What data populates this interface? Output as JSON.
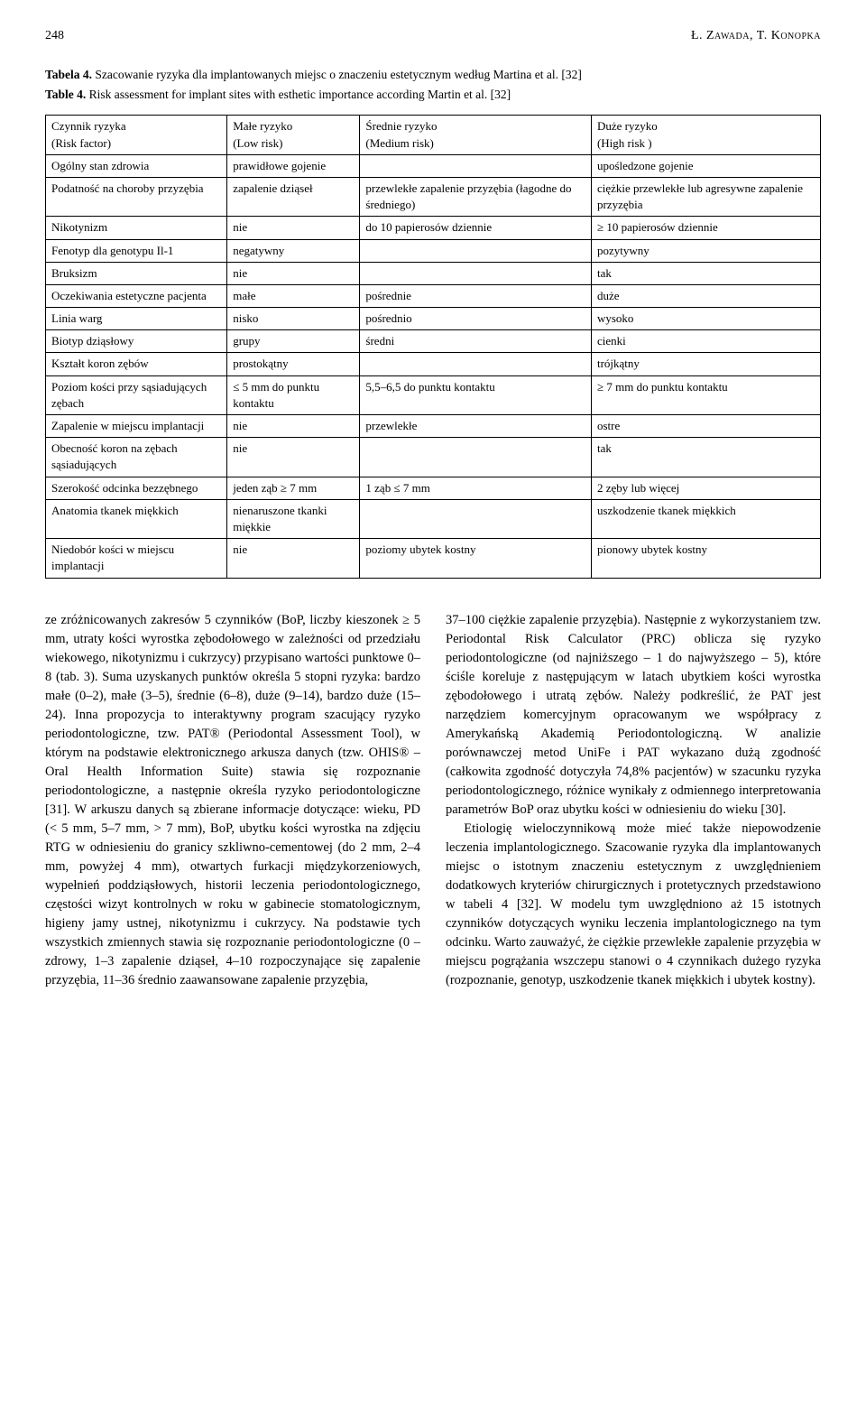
{
  "header": {
    "page_number": "248",
    "authors": "Ł. Zawada, T. Konopka"
  },
  "table": {
    "caption_label": "Tabela 4.",
    "caption_text": "Szacowanie ryzyka dla implantowanych miejsc o znaczeniu estetycznym według Martina et al. [32]",
    "subcaption_label": "Table 4.",
    "subcaption_text": "Risk assessment for implant sites with esthetic importance according Martin et al. [32]",
    "headers": {
      "c0_pl": "Czynnik ryzyka",
      "c0_en": "(Risk factor)",
      "c1_pl": "Małe ryzyko",
      "c1_en": "(Low risk)",
      "c2_pl": "Średnie ryzyko",
      "c2_en": "(Medium risk)",
      "c3_pl": "Duże ryzyko",
      "c3_en": "(High risk )"
    },
    "rows": [
      {
        "c0": "Ogólny stan zdrowia",
        "c1": "prawidłowe gojenie",
        "c2": "",
        "c3": "upośledzone gojenie"
      },
      {
        "c0": "Podatność na choroby przyzębia",
        "c1": "zapalenie dziąseł",
        "c2": "przewlekłe zapalenie przyzębia (łagodne do średniego)",
        "c3": "ciężkie przewlekłe lub agresywne zapalenie przyzębia"
      },
      {
        "c0": "Nikotynizm",
        "c1": "nie",
        "c2": "do 10 papierosów dziennie",
        "c3": "≥ 10 papierosów dziennie"
      },
      {
        "c0": "Fenotyp dla genotypu Il-1",
        "c1": "negatywny",
        "c2": "",
        "c3": "pozytywny"
      },
      {
        "c0": "Bruksizm",
        "c1": "nie",
        "c2": "",
        "c3": "tak"
      },
      {
        "c0": "Oczekiwania estetyczne pacjenta",
        "c1": "małe",
        "c2": "pośrednie",
        "c3": "duże"
      },
      {
        "c0": "Linia warg",
        "c1": "nisko",
        "c2": "pośrednio",
        "c3": "wysoko"
      },
      {
        "c0": "Biotyp dziąsłowy",
        "c1": "grupy",
        "c2": "średni",
        "c3": "cienki"
      },
      {
        "c0": "Kształt koron zębów",
        "c1": "prostokątny",
        "c2": "",
        "c3": "trójkątny"
      },
      {
        "c0": "Poziom kości przy sąsiadujących zębach",
        "c1": "≤ 5 mm do punktu kontaktu",
        "c2": "5,5–6,5 do punktu kontaktu",
        "c3": "≥ 7 mm do punktu kontaktu"
      },
      {
        "c0": "Zapalenie w miejscu implantacji",
        "c1": "nie",
        "c2": "przewlekłe",
        "c3": "ostre"
      },
      {
        "c0": "Obecność koron na zębach sąsiadujących",
        "c1": "nie",
        "c2": "",
        "c3": "tak"
      },
      {
        "c0": "Szerokość odcinka bezzębnego",
        "c1": "jeden ząb ≥ 7 mm",
        "c2": "1 ząb ≤ 7 mm",
        "c3": "2 zęby lub więcej"
      },
      {
        "c0": "Anatomia tkanek miękkich",
        "c1": "nienaruszone tkanki miękkie",
        "c2": "",
        "c3": "uszkodzenie tkanek miękkich"
      },
      {
        "c0": "Niedobór kości w miejscu implantacji",
        "c1": "nie",
        "c2": "poziomy ubytek kostny",
        "c3": "pionowy ubytek kostny"
      }
    ],
    "border_color": "#000000",
    "font_size": 13
  },
  "body": {
    "left": "ze zróżnicowanych zakresów 5 czynników (BoP, liczby kieszonek ≥ 5 mm, utraty kości wyrostka zębodołowego w zależności od przedziału wiekowego, nikotynizmu i cukrzycy) przypisano wartości punktowe 0–8 (tab. 3). Suma uzyskanych punktów określa 5 stopni ryzyka: bardzo małe (0–2), małe (3–5), średnie (6–8), duże (9–14), bardzo duże (15–24). Inna propozycja to interaktywny program szacujący ryzyko periodontologiczne, tzw. PAT® (Periodontal Assessment Tool), w którym na podstawie elektronicznego arkusza danych (tzw. OHIS® – Oral Health Information Suite) stawia się rozpoznanie periodontologiczne, a następnie określa ryzyko periodontologiczne [31]. W arkuszu danych są zbierane informacje dotyczące: wieku, PD (< 5 mm, 5–7 mm, > 7 mm), BoP, ubytku kości wyrostka na zdjęciu RTG w odniesieniu do granicy szkliwno-cementowej (do 2 mm, 2–4 mm, powyżej 4 mm), otwartych furkacji międzykorzeniowych, wypełnień poddziąsłowych, historii leczenia periodontologicznego, częstości wizyt kontrolnych w roku w gabinecie stomatologicznym, higieny jamy ustnej, nikotynizmu i cukrzycy. Na podstawie tych wszystkich zmiennych stawia się rozpoznanie periodontologiczne (0 – zdrowy, 1–3 zapalenie dziąseł, 4–10 rozpoczynające się zapalenie przyzębia, 11–36 średnio zaawansowane zapalenie przyzębia,",
    "right_p1": "37–100 ciężkie zapalenie przyzębia). Następnie z wykorzystaniem tzw. Periodontal Risk Calculator (PRC) oblicza się ryzyko periodontologiczne (od najniższego – 1 do najwyższego – 5), które ściśle koreluje z następującym w latach ubytkiem kości wyrostka zębodołowego i utratą zębów. Należy podkreślić, że PAT jest narzędziem komercyjnym opracowanym we współpracy z Amerykańską Akademią Periodontologiczną. W analizie porównawczej metod UniFe i PAT wykazano dużą zgodność (całkowita zgodność dotyczyła 74,8% pacjentów) w szacunku ryzyka periodontologicznego, różnice wynikały z odmiennego interpretowania parametrów BoP oraz ubytku kości w odniesieniu do wieku [30].",
    "right_p2": "Etiologię wieloczynnikową może mieć także niepowodzenie leczenia implantologicznego. Szacowanie ryzyka dla implantowanych miejsc o istotnym znaczeniu estetycznym z uwzględnieniem dodatkowych kryteriów chirurgicznych i protetycznych przedstawiono w tabeli 4 [32]. W modelu tym uwzględniono aż 15 istotnych czynników dotyczących wyniku leczenia implantologicznego na tym odcinku. Warto zauważyć, że ciężkie przewlekłe zapalenie przyzębia w miejscu pogrążania wszczepu stanowi o 4 czynnikach dużego ryzyka (rozpoznanie, genotyp, uszkodzenie tkanek miękkich i ubytek kostny)."
  }
}
